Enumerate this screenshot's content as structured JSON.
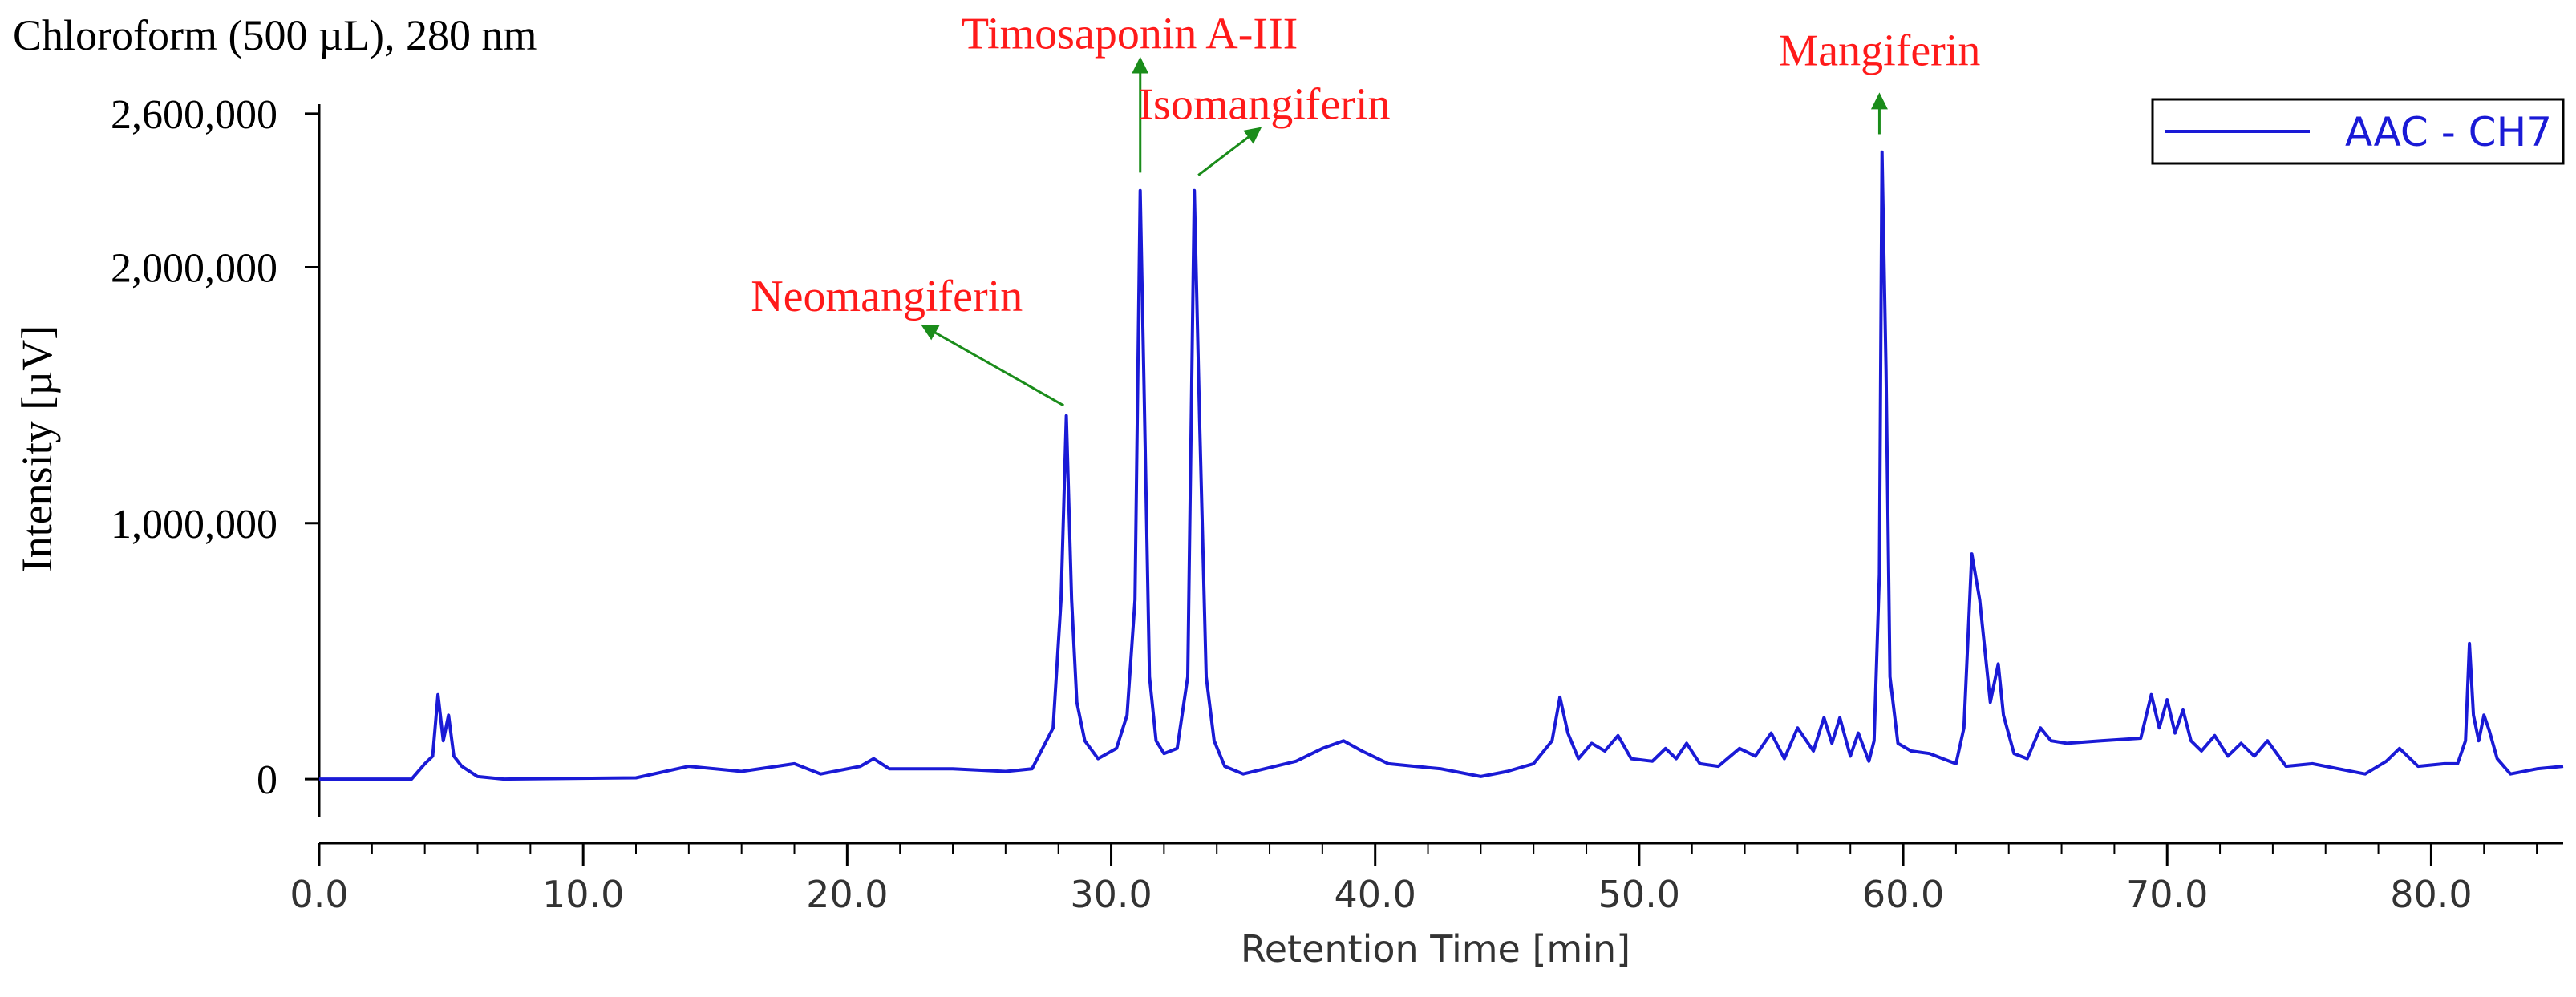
{
  "chart_data": {
    "type": "line",
    "title": "Chloroform (500 µL), 280 nm",
    "xlabel": "Retention Time [min]",
    "ylabel": "Intensity [µV]",
    "xlim": [
      0,
      85
    ],
    "ylim": [
      -150000,
      2700000
    ],
    "x_ticks": [
      0,
      10,
      20,
      30,
      40,
      50,
      60,
      70,
      80
    ],
    "x_tick_labels": [
      "0.0",
      "10.0",
      "20.0",
      "30.0",
      "40.0",
      "50.0",
      "60.0",
      "70.0",
      "80.0"
    ],
    "x_minor_step": 2,
    "y_ticks": [
      0,
      1000000,
      2000000,
      2600000
    ],
    "y_tick_labels": [
      "0",
      "1,000,000",
      "2,000,000",
      "2,600,000"
    ],
    "legend": {
      "position": "top-right",
      "entries": [
        "AAC - CH7"
      ]
    },
    "line_color": "#1a1ad6",
    "annotation_color": "#ff1a1a",
    "arrow_color": "#1a8c1a",
    "series": [
      {
        "name": "AAC - CH7",
        "x": [
          0.0,
          3.5,
          4.0,
          4.3,
          4.5,
          4.7,
          4.9,
          5.1,
          5.4,
          6.0,
          7.0,
          12.0,
          14.0,
          16.0,
          18.0,
          19.0,
          20.5,
          21.0,
          21.6,
          24.0,
          26.0,
          27.0,
          27.8,
          28.1,
          28.3,
          28.5,
          28.7,
          29.0,
          29.5,
          30.2,
          30.6,
          30.9,
          31.1,
          31.25,
          31.45,
          31.7,
          32.0,
          32.5,
          32.9,
          33.15,
          33.35,
          33.6,
          33.9,
          34.3,
          35.0,
          37.0,
          38.0,
          38.8,
          39.5,
          40.5,
          41.5,
          42.5,
          44.0,
          45.0,
          46.0,
          46.7,
          47.0,
          47.3,
          47.7,
          48.2,
          48.7,
          49.2,
          49.7,
          50.5,
          51.0,
          51.4,
          51.8,
          52.3,
          53.0,
          53.8,
          54.4,
          55.0,
          55.5,
          56.0,
          56.6,
          57.0,
          57.3,
          57.6,
          58.0,
          58.3,
          58.7,
          58.9,
          59.1,
          59.2,
          59.35,
          59.5,
          59.8,
          60.3,
          61.0,
          61.5,
          62.0,
          62.3,
          62.6,
          62.9,
          63.3,
          63.6,
          63.8,
          64.2,
          64.7,
          65.2,
          65.6,
          66.2,
          67.5,
          69.0,
          69.4,
          69.7,
          70.0,
          70.3,
          70.6,
          70.9,
          71.3,
          71.8,
          72.3,
          72.8,
          73.3,
          73.8,
          74.5,
          75.5,
          76.5,
          77.5,
          78.3,
          78.8,
          79.5,
          80.5,
          81.0,
          81.3,
          81.45,
          81.6,
          81.8,
          82.0,
          82.2,
          82.5,
          83.0,
          84.0,
          85.0
        ],
        "values": [
          0,
          0,
          60000,
          90000,
          330000,
          150000,
          250000,
          90000,
          50000,
          10000,
          0,
          5000,
          50000,
          30000,
          60000,
          20000,
          50000,
          80000,
          40000,
          40000,
          30000,
          40000,
          200000,
          700000,
          1420000,
          700000,
          300000,
          150000,
          80000,
          120000,
          250000,
          700000,
          2300000,
          1500000,
          400000,
          150000,
          100000,
          120000,
          400000,
          2300000,
          1400000,
          400000,
          150000,
          50000,
          20000,
          70000,
          120000,
          150000,
          110000,
          60000,
          50000,
          40000,
          10000,
          30000,
          60000,
          150000,
          320000,
          180000,
          80000,
          140000,
          110000,
          170000,
          80000,
          70000,
          120000,
          80000,
          140000,
          60000,
          50000,
          120000,
          90000,
          180000,
          80000,
          200000,
          110000,
          240000,
          140000,
          240000,
          90000,
          180000,
          70000,
          150000,
          800000,
          2450000,
          1600000,
          400000,
          140000,
          110000,
          100000,
          80000,
          60000,
          200000,
          880000,
          700000,
          300000,
          450000,
          250000,
          100000,
          80000,
          200000,
          150000,
          140000,
          150000,
          160000,
          330000,
          200000,
          310000,
          180000,
          270000,
          150000,
          110000,
          170000,
          90000,
          140000,
          90000,
          150000,
          50000,
          60000,
          40000,
          20000,
          70000,
          120000,
          50000,
          60000,
          60000,
          150000,
          530000,
          250000,
          150000,
          250000,
          190000,
          80000,
          20000,
          40000,
          50000
        ]
      }
    ],
    "annotations": [
      {
        "label": "Neomangiferin",
        "arrow_from": [
          28.2,
          1460000
        ],
        "arrow_to": [
          22.9,
          1770000
        ],
        "text_at": [
          21.5,
          1830000
        ]
      },
      {
        "label": "Timosaponin A-III",
        "arrow_from": [
          31.1,
          2370000
        ],
        "arrow_to": [
          31.1,
          2810000
        ],
        "text_at": [
          30.7,
          2855000
        ]
      },
      {
        "label": "Isomangiferin",
        "arrow_from": [
          33.3,
          2360000
        ],
        "arrow_to": [
          35.6,
          2540000
        ],
        "text_at": [
          35.8,
          2580000
        ]
      },
      {
        "label": "Mangiferin",
        "arrow_from": [
          59.1,
          2520000
        ],
        "arrow_to": [
          59.1,
          2670000
        ],
        "text_at": [
          59.1,
          2790000
        ]
      }
    ]
  }
}
